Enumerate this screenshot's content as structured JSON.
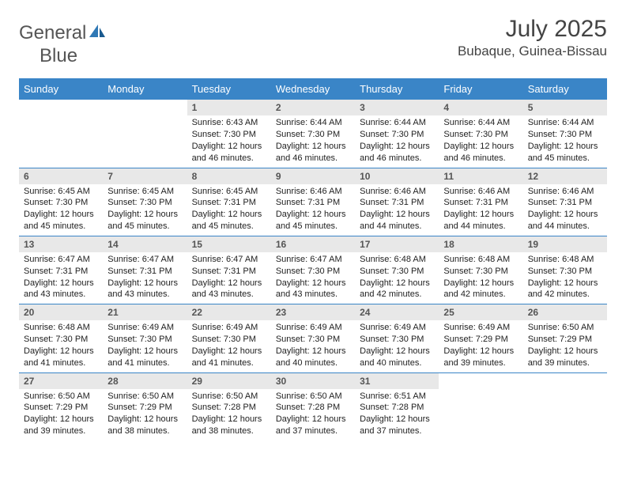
{
  "logo": {
    "text1": "General",
    "text2": "Blue"
  },
  "title": {
    "month": "July 2025",
    "location": "Bubaque, Guinea-Bissau"
  },
  "colors": {
    "header_bg": "#3a85c7",
    "header_text": "#ffffff",
    "daynum_bg": "#e8e8e8",
    "daynum_text": "#555555",
    "rule": "#3a85c7",
    "logo_blue": "#2f78b5",
    "logo_gray": "#555555"
  },
  "daysOfWeek": [
    "Sunday",
    "Monday",
    "Tuesday",
    "Wednesday",
    "Thursday",
    "Friday",
    "Saturday"
  ],
  "weeks": [
    [
      {},
      {},
      {
        "n": "1",
        "sr": "Sunrise: 6:43 AM",
        "ss": "Sunset: 7:30 PM",
        "d1": "Daylight: 12 hours",
        "d2": "and 46 minutes."
      },
      {
        "n": "2",
        "sr": "Sunrise: 6:44 AM",
        "ss": "Sunset: 7:30 PM",
        "d1": "Daylight: 12 hours",
        "d2": "and 46 minutes."
      },
      {
        "n": "3",
        "sr": "Sunrise: 6:44 AM",
        "ss": "Sunset: 7:30 PM",
        "d1": "Daylight: 12 hours",
        "d2": "and 46 minutes."
      },
      {
        "n": "4",
        "sr": "Sunrise: 6:44 AM",
        "ss": "Sunset: 7:30 PM",
        "d1": "Daylight: 12 hours",
        "d2": "and 46 minutes."
      },
      {
        "n": "5",
        "sr": "Sunrise: 6:44 AM",
        "ss": "Sunset: 7:30 PM",
        "d1": "Daylight: 12 hours",
        "d2": "and 45 minutes."
      }
    ],
    [
      {
        "n": "6",
        "sr": "Sunrise: 6:45 AM",
        "ss": "Sunset: 7:30 PM",
        "d1": "Daylight: 12 hours",
        "d2": "and 45 minutes."
      },
      {
        "n": "7",
        "sr": "Sunrise: 6:45 AM",
        "ss": "Sunset: 7:30 PM",
        "d1": "Daylight: 12 hours",
        "d2": "and 45 minutes."
      },
      {
        "n": "8",
        "sr": "Sunrise: 6:45 AM",
        "ss": "Sunset: 7:31 PM",
        "d1": "Daylight: 12 hours",
        "d2": "and 45 minutes."
      },
      {
        "n": "9",
        "sr": "Sunrise: 6:46 AM",
        "ss": "Sunset: 7:31 PM",
        "d1": "Daylight: 12 hours",
        "d2": "and 45 minutes."
      },
      {
        "n": "10",
        "sr": "Sunrise: 6:46 AM",
        "ss": "Sunset: 7:31 PM",
        "d1": "Daylight: 12 hours",
        "d2": "and 44 minutes."
      },
      {
        "n": "11",
        "sr": "Sunrise: 6:46 AM",
        "ss": "Sunset: 7:31 PM",
        "d1": "Daylight: 12 hours",
        "d2": "and 44 minutes."
      },
      {
        "n": "12",
        "sr": "Sunrise: 6:46 AM",
        "ss": "Sunset: 7:31 PM",
        "d1": "Daylight: 12 hours",
        "d2": "and 44 minutes."
      }
    ],
    [
      {
        "n": "13",
        "sr": "Sunrise: 6:47 AM",
        "ss": "Sunset: 7:31 PM",
        "d1": "Daylight: 12 hours",
        "d2": "and 43 minutes."
      },
      {
        "n": "14",
        "sr": "Sunrise: 6:47 AM",
        "ss": "Sunset: 7:31 PM",
        "d1": "Daylight: 12 hours",
        "d2": "and 43 minutes."
      },
      {
        "n": "15",
        "sr": "Sunrise: 6:47 AM",
        "ss": "Sunset: 7:31 PM",
        "d1": "Daylight: 12 hours",
        "d2": "and 43 minutes."
      },
      {
        "n": "16",
        "sr": "Sunrise: 6:47 AM",
        "ss": "Sunset: 7:30 PM",
        "d1": "Daylight: 12 hours",
        "d2": "and 43 minutes."
      },
      {
        "n": "17",
        "sr": "Sunrise: 6:48 AM",
        "ss": "Sunset: 7:30 PM",
        "d1": "Daylight: 12 hours",
        "d2": "and 42 minutes."
      },
      {
        "n": "18",
        "sr": "Sunrise: 6:48 AM",
        "ss": "Sunset: 7:30 PM",
        "d1": "Daylight: 12 hours",
        "d2": "and 42 minutes."
      },
      {
        "n": "19",
        "sr": "Sunrise: 6:48 AM",
        "ss": "Sunset: 7:30 PM",
        "d1": "Daylight: 12 hours",
        "d2": "and 42 minutes."
      }
    ],
    [
      {
        "n": "20",
        "sr": "Sunrise: 6:48 AM",
        "ss": "Sunset: 7:30 PM",
        "d1": "Daylight: 12 hours",
        "d2": "and 41 minutes."
      },
      {
        "n": "21",
        "sr": "Sunrise: 6:49 AM",
        "ss": "Sunset: 7:30 PM",
        "d1": "Daylight: 12 hours",
        "d2": "and 41 minutes."
      },
      {
        "n": "22",
        "sr": "Sunrise: 6:49 AM",
        "ss": "Sunset: 7:30 PM",
        "d1": "Daylight: 12 hours",
        "d2": "and 41 minutes."
      },
      {
        "n": "23",
        "sr": "Sunrise: 6:49 AM",
        "ss": "Sunset: 7:30 PM",
        "d1": "Daylight: 12 hours",
        "d2": "and 40 minutes."
      },
      {
        "n": "24",
        "sr": "Sunrise: 6:49 AM",
        "ss": "Sunset: 7:30 PM",
        "d1": "Daylight: 12 hours",
        "d2": "and 40 minutes."
      },
      {
        "n": "25",
        "sr": "Sunrise: 6:49 AM",
        "ss": "Sunset: 7:29 PM",
        "d1": "Daylight: 12 hours",
        "d2": "and 39 minutes."
      },
      {
        "n": "26",
        "sr": "Sunrise: 6:50 AM",
        "ss": "Sunset: 7:29 PM",
        "d1": "Daylight: 12 hours",
        "d2": "and 39 minutes."
      }
    ],
    [
      {
        "n": "27",
        "sr": "Sunrise: 6:50 AM",
        "ss": "Sunset: 7:29 PM",
        "d1": "Daylight: 12 hours",
        "d2": "and 39 minutes."
      },
      {
        "n": "28",
        "sr": "Sunrise: 6:50 AM",
        "ss": "Sunset: 7:29 PM",
        "d1": "Daylight: 12 hours",
        "d2": "and 38 minutes."
      },
      {
        "n": "29",
        "sr": "Sunrise: 6:50 AM",
        "ss": "Sunset: 7:28 PM",
        "d1": "Daylight: 12 hours",
        "d2": "and 38 minutes."
      },
      {
        "n": "30",
        "sr": "Sunrise: 6:50 AM",
        "ss": "Sunset: 7:28 PM",
        "d1": "Daylight: 12 hours",
        "d2": "and 37 minutes."
      },
      {
        "n": "31",
        "sr": "Sunrise: 6:51 AM",
        "ss": "Sunset: 7:28 PM",
        "d1": "Daylight: 12 hours",
        "d2": "and 37 minutes."
      },
      {},
      {}
    ]
  ]
}
